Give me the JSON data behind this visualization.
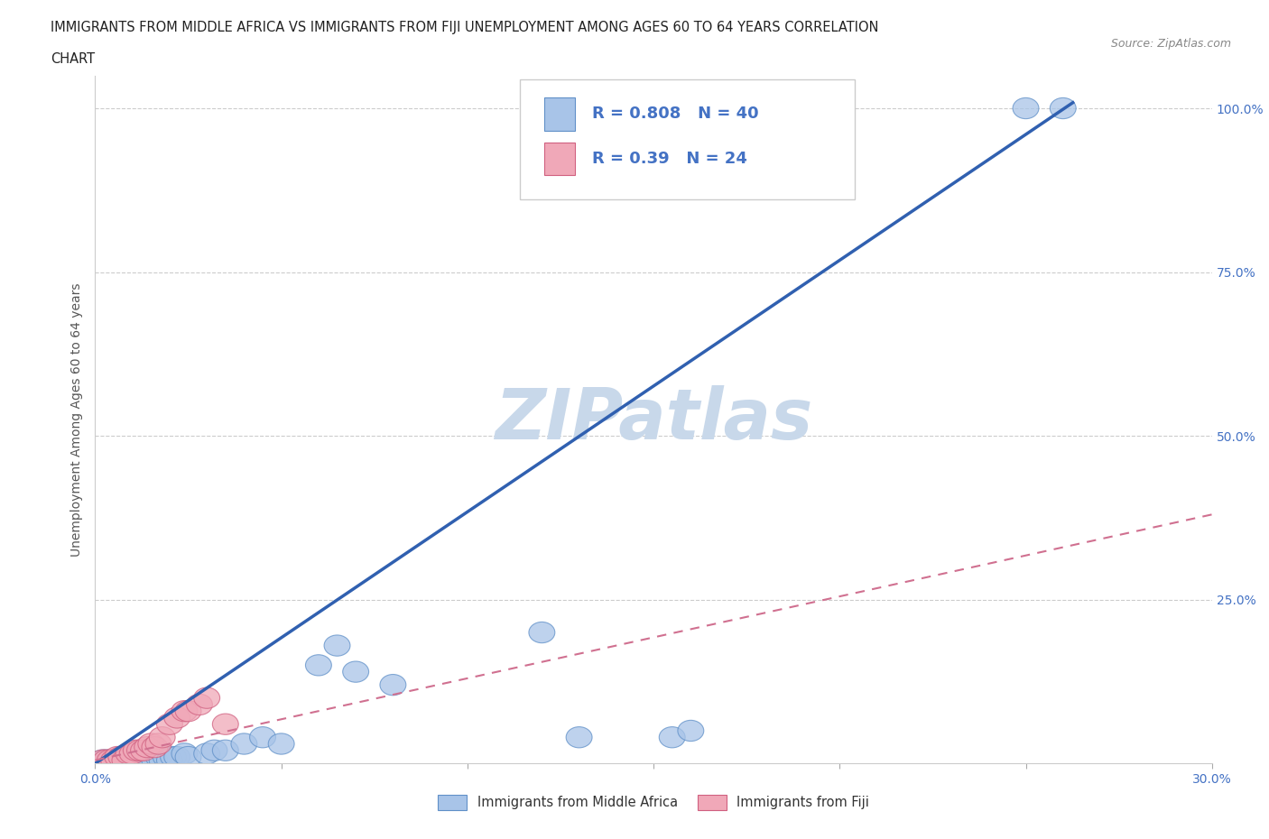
{
  "title_line1": "IMMIGRANTS FROM MIDDLE AFRICA VS IMMIGRANTS FROM FIJI UNEMPLOYMENT AMONG AGES 60 TO 64 YEARS CORRELATION",
  "title_line2": "CHART",
  "source_text": "Source: ZipAtlas.com",
  "ylabel": "Unemployment Among Ages 60 to 64 years",
  "xlim": [
    0.0,
    0.3
  ],
  "ylim": [
    0.0,
    1.05
  ],
  "blue_R": 0.808,
  "blue_N": 40,
  "pink_R": 0.39,
  "pink_N": 24,
  "blue_color": "#a8c4e8",
  "pink_color": "#f0a8b8",
  "blue_edge_color": "#6090c8",
  "pink_edge_color": "#d06080",
  "blue_line_color": "#3060b0",
  "pink_line_color": "#d07090",
  "watermark_color": "#c8d8ea",
  "legend_label_blue": "Immigrants from Middle Africa",
  "legend_label_pink": "Immigrants from Fiji",
  "blue_scatter_x": [
    0.002,
    0.003,
    0.004,
    0.005,
    0.006,
    0.007,
    0.008,
    0.009,
    0.01,
    0.01,
    0.011,
    0.012,
    0.013,
    0.014,
    0.015,
    0.016,
    0.017,
    0.018,
    0.019,
    0.02,
    0.021,
    0.022,
    0.024,
    0.025,
    0.03,
    0.032,
    0.035,
    0.04,
    0.045,
    0.05,
    0.06,
    0.065,
    0.07,
    0.08,
    0.12,
    0.13,
    0.155,
    0.16,
    0.25,
    0.26
  ],
  "blue_scatter_y": [
    0.005,
    0.005,
    0.005,
    0.005,
    0.005,
    0.005,
    0.005,
    0.005,
    0.005,
    0.01,
    0.005,
    0.005,
    0.005,
    0.005,
    0.005,
    0.005,
    0.01,
    0.005,
    0.01,
    0.005,
    0.01,
    0.01,
    0.015,
    0.01,
    0.015,
    0.02,
    0.02,
    0.03,
    0.04,
    0.03,
    0.15,
    0.18,
    0.14,
    0.12,
    0.2,
    0.04,
    0.04,
    0.05,
    1.0,
    1.0
  ],
  "pink_scatter_x": [
    0.002,
    0.003,
    0.004,
    0.005,
    0.006,
    0.007,
    0.008,
    0.009,
    0.01,
    0.011,
    0.012,
    0.013,
    0.014,
    0.015,
    0.016,
    0.017,
    0.018,
    0.02,
    0.022,
    0.024,
    0.025,
    0.028,
    0.03,
    0.035
  ],
  "pink_scatter_y": [
    0.005,
    0.005,
    0.005,
    0.005,
    0.01,
    0.01,
    0.005,
    0.015,
    0.015,
    0.02,
    0.02,
    0.02,
    0.025,
    0.03,
    0.025,
    0.03,
    0.04,
    0.06,
    0.07,
    0.08,
    0.08,
    0.09,
    0.1,
    0.06
  ],
  "blue_line_x": [
    0.0,
    0.263
  ],
  "blue_line_y": [
    0.0,
    1.01
  ],
  "pink_line_x": [
    0.0,
    0.3
  ],
  "pink_line_y": [
    0.005,
    0.38
  ]
}
